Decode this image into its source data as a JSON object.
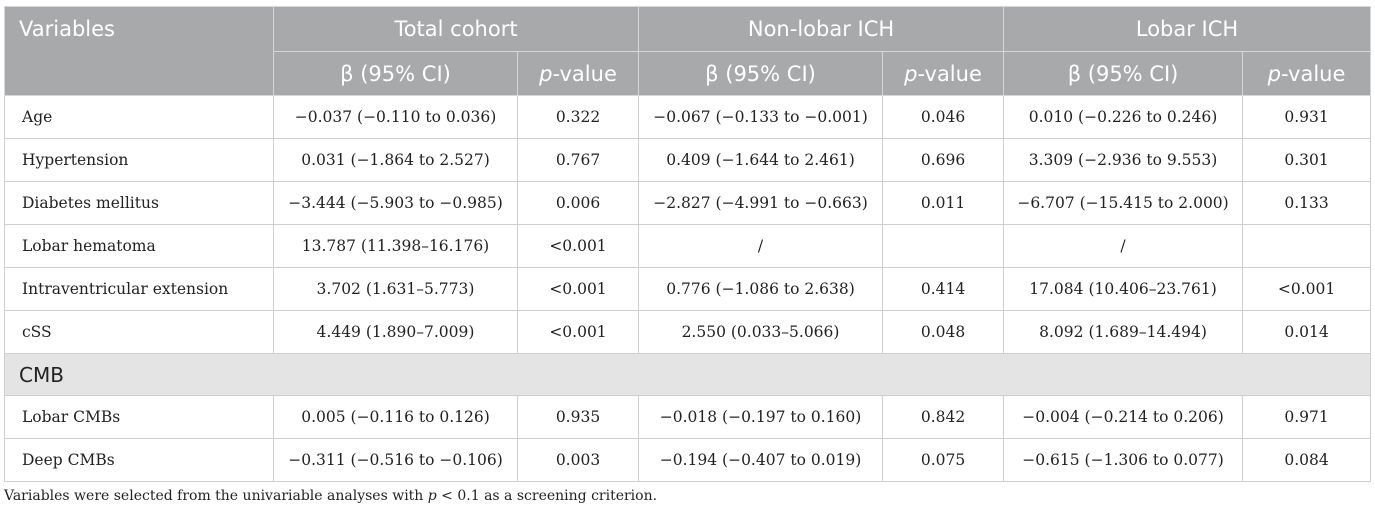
{
  "table": {
    "header_row1": {
      "variables": "Variables",
      "groups": [
        "Total cohort",
        "Non-lobar ICH",
        "Lobar ICH"
      ]
    },
    "header_row2": {
      "beta": "β (95% CI)",
      "p_italic": "p",
      "p_suffix": "-value"
    },
    "rows": [
      {
        "label": "Age",
        "cells": [
          "−0.037 (−0.110 to 0.036)",
          "0.322",
          "−0.067 (−0.133 to −0.001)",
          "0.046",
          "0.010 (−0.226 to 0.246)",
          "0.931"
        ]
      },
      {
        "label": "Hypertension",
        "cells": [
          "0.031 (−1.864 to 2.527)",
          "0.767",
          "0.409 (−1.644 to 2.461)",
          "0.696",
          "3.309 (−2.936 to 9.553)",
          "0.301"
        ]
      },
      {
        "label": "Diabetes mellitus",
        "cells": [
          "−3.444 (−5.903 to −0.985)",
          "0.006",
          "−2.827 (−4.991 to −0.663)",
          "0.011",
          "−6.707 (−15.415 to 2.000)",
          "0.133"
        ]
      },
      {
        "label": "Lobar hematoma",
        "cells": [
          "13.787 (11.398–16.176)",
          "<0.001",
          "/",
          "",
          "/",
          ""
        ]
      },
      {
        "label": "Intraventricular extension",
        "cells": [
          "3.702 (1.631–5.773)",
          "<0.001",
          "0.776 (−1.086 to 2.638)",
          "0.414",
          "17.084 (10.406–23.761)",
          "<0.001"
        ]
      },
      {
        "label": "cSS",
        "cells": [
          "4.449 (1.890–7.009)",
          "<0.001",
          "2.550 (0.033–5.066)",
          "0.048",
          "8.092 (1.689–14.494)",
          "0.014"
        ]
      }
    ],
    "section": "CMB",
    "section_rows": [
      {
        "label": "Lobar CMBs",
        "cells": [
          "0.005 (−0.116 to 0.126)",
          "0.935",
          "−0.018 (−0.197 to 0.160)",
          "0.842",
          "−0.004 (−0.214 to 0.206)",
          "0.971"
        ]
      },
      {
        "label": "Deep CMBs",
        "cells": [
          "−0.311 (−0.516 to −0.106)",
          "0.003",
          "−0.194 (−0.407 to 0.019)",
          "0.075",
          "−0.615 (−1.306 to 0.077)",
          "0.084"
        ]
      }
    ]
  },
  "footnote": {
    "before": "Variables were selected from the univariable analyses with ",
    "p": "p",
    "after": " < 0.1 as a screening criterion."
  },
  "colors": {
    "header_bg": "#a7a9ab",
    "section_bg": "#e4e4e4",
    "border": "#cfcfcf"
  }
}
